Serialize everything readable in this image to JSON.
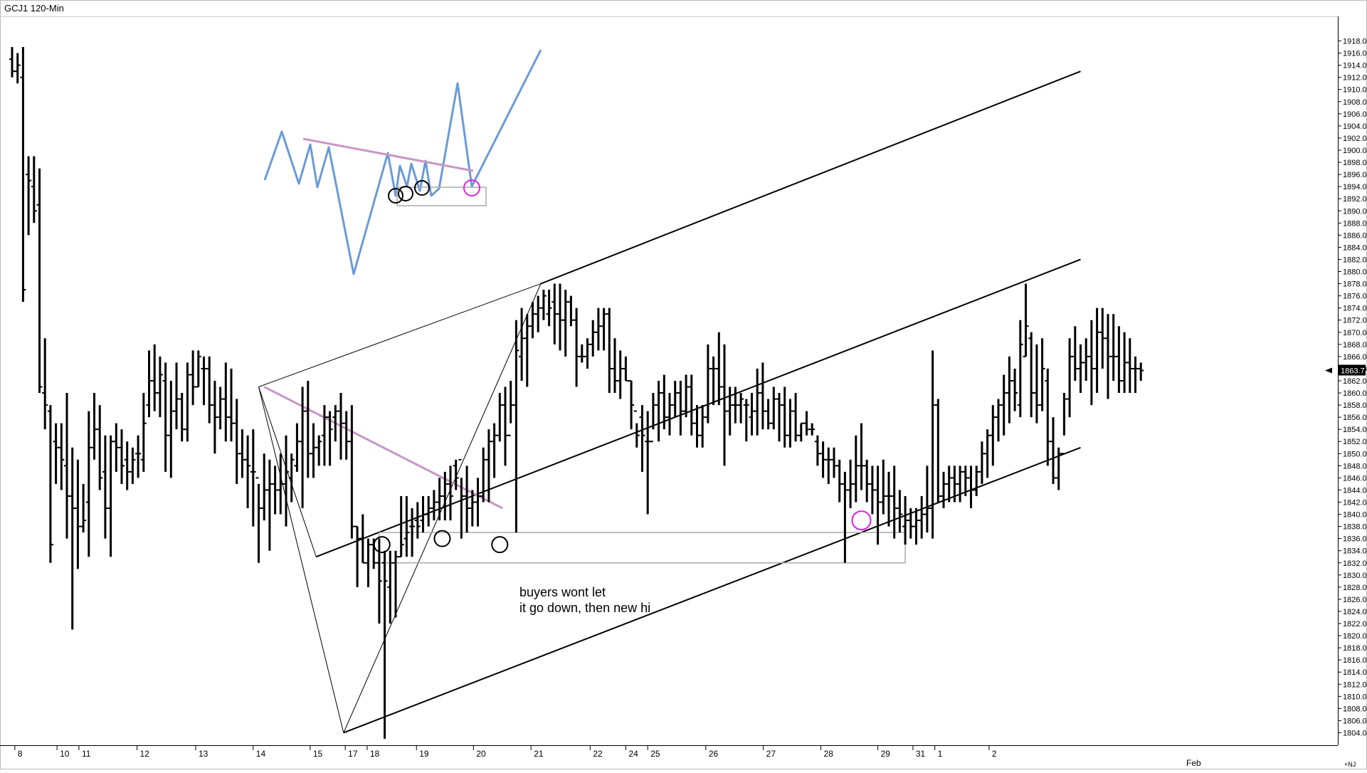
{
  "chart_data": {
    "type": "ohlc",
    "title": "GCJ1 120-Min",
    "last_price": "1863.7",
    "y_axis": {
      "ylim": [
        1803,
        1919
      ],
      "ticks": [
        "1918.0",
        "1916.0",
        "1914.0",
        "1912.0",
        "1910.0",
        "1908.0",
        "1906.0",
        "1904.0",
        "1902.0",
        "1900.0",
        "1898.0",
        "1896.0",
        "1894.0",
        "1892.0",
        "1890.0",
        "1888.0",
        "1886.0",
        "1884.0",
        "1882.0",
        "1880.0",
        "1878.0",
        "1876.0",
        "1874.0",
        "1872.0",
        "1870.0",
        "1868.0",
        "1866.0",
        "1864.0",
        "1862.0",
        "1860.0",
        "1858.0",
        "1856.0",
        "1854.0",
        "1852.0",
        "1850.0",
        "1848.0",
        "1846.0",
        "1844.0",
        "1842.0",
        "1840.0",
        "1838.0",
        "1836.0",
        "1834.0",
        "1832.0",
        "1830.0",
        "1828.0",
        "1826.0",
        "1824.0",
        "1822.0",
        "1820.0",
        "1818.0",
        "1816.0",
        "1814.0",
        "1812.0",
        "1810.0",
        "1808.0",
        "1806.0",
        "1804.0"
      ]
    },
    "x_axis": {
      "labels": [
        {
          "slot": 0.5,
          "text": "8"
        },
        {
          "slot": 8.2,
          "text": "10"
        },
        {
          "slot": 12.2,
          "text": "11"
        },
        {
          "slot": 22.8,
          "text": "12"
        },
        {
          "slot": 33.5,
          "text": "13"
        },
        {
          "slot": 44,
          "text": "14"
        },
        {
          "slot": 54.4,
          "text": "15"
        },
        {
          "slot": 60.8,
          "text": "17"
        },
        {
          "slot": 64.8,
          "text": "18"
        },
        {
          "slot": 73.8,
          "text": "19"
        },
        {
          "slot": 84.2,
          "text": "20"
        },
        {
          "slot": 94.7,
          "text": "21"
        },
        {
          "slot": 105.5,
          "text": "22"
        },
        {
          "slot": 112,
          "text": "24"
        },
        {
          "slot": 116,
          "text": "25"
        },
        {
          "slot": 126.6,
          "text": "26"
        },
        {
          "slot": 137.1,
          "text": "27"
        },
        {
          "slot": 147.6,
          "text": "28"
        },
        {
          "slot": 158,
          "text": "29"
        },
        {
          "slot": 164.4,
          "text": "31"
        },
        {
          "slot": 168.4,
          "text": "1"
        },
        {
          "slot": 178.3,
          "text": "2"
        }
      ],
      "month_label": {
        "slot": 169.5,
        "text": "Feb"
      },
      "corner_label": "+NJ"
    },
    "bars": [
      [
        1915,
        1917,
        1912,
        1913
      ],
      [
        1913,
        1916,
        1911,
        1914
      ],
      [
        1912,
        1917,
        1875,
        1877
      ],
      [
        1896,
        1899,
        1886,
        1895
      ],
      [
        1894,
        1899,
        1888,
        1890
      ],
      [
        1891,
        1897,
        1860,
        1861
      ],
      [
        1860,
        1869,
        1854,
        1858
      ],
      [
        1857,
        1858,
        1832,
        1835
      ],
      [
        1852,
        1855,
        1845,
        1851
      ],
      [
        1851,
        1855,
        1844,
        1849
      ],
      [
        1848,
        1860,
        1836,
        1843
      ],
      [
        1843,
        1851,
        1821,
        1841
      ],
      [
        1841,
        1849,
        1831,
        1838
      ],
      [
        1838,
        1845,
        1837,
        1839
      ],
      [
        1842,
        1857,
        1833,
        1851
      ],
      [
        1851,
        1860,
        1849,
        1854
      ],
      [
        1854,
        1858,
        1844,
        1846
      ],
      [
        1847,
        1853,
        1836,
        1841
      ],
      [
        1841,
        1853,
        1833,
        1852
      ],
      [
        1852,
        1855,
        1847,
        1851
      ],
      [
        1851,
        1854,
        1845,
        1848
      ],
      [
        1849,
        1852,
        1844,
        1847
      ],
      [
        1847,
        1851,
        1845,
        1849
      ],
      [
        1850,
        1853,
        1846,
        1850
      ],
      [
        1849,
        1860,
        1847,
        1855
      ],
      [
        1858,
        1867,
        1856,
        1862
      ],
      [
        1862,
        1868,
        1857,
        1860
      ],
      [
        1860,
        1866,
        1856,
        1863
      ],
      [
        1862,
        1865,
        1847,
        1853
      ],
      [
        1853,
        1862,
        1846,
        1857
      ],
      [
        1857,
        1865,
        1854,
        1859
      ],
      [
        1859,
        1860,
        1852,
        1854
      ],
      [
        1854,
        1865,
        1852,
        1863
      ],
      [
        1863,
        1867,
        1858,
        1861
      ],
      [
        1861,
        1867,
        1861,
        1866
      ],
      [
        1864,
        1866,
        1858,
        1864
      ],
      [
        1864,
        1866,
        1855,
        1858
      ],
      [
        1858,
        1862,
        1850,
        1856
      ],
      [
        1856,
        1861,
        1854,
        1859
      ],
      [
        1859,
        1865,
        1852,
        1856
      ],
      [
        1856,
        1864,
        1852,
        1855
      ],
      [
        1855,
        1859,
        1845,
        1850
      ],
      [
        1850,
        1854,
        1846,
        1849
      ],
      [
        1849,
        1853,
        1841,
        1848
      ],
      [
        1847,
        1854,
        1838,
        1847
      ],
      [
        1846,
        1845,
        1832,
        1841
      ],
      [
        1841,
        1850,
        1839,
        1844
      ],
      [
        1844,
        1849,
        1834,
        1845
      ],
      [
        1845,
        1848,
        1840,
        1844
      ],
      [
        1844,
        1850,
        1840,
        1845
      ],
      [
        1845,
        1853,
        1838,
        1847
      ],
      [
        1846,
        1850,
        1842,
        1849
      ],
      [
        1848,
        1855,
        1847,
        1852
      ],
      [
        1852,
        1861,
        1841,
        1857
      ],
      [
        1857,
        1862,
        1846,
        1850
      ],
      [
        1850,
        1855,
        1846,
        1851
      ],
      [
        1851,
        1853,
        1848,
        1852
      ],
      [
        1853,
        1858,
        1848,
        1856
      ],
      [
        1856,
        1857,
        1848,
        1854
      ],
      [
        1856,
        1858,
        1852,
        1857
      ],
      [
        1857,
        1860,
        1849,
        1855
      ],
      [
        1855,
        1857,
        1849,
        1852
      ],
      [
        1852,
        1858,
        1836,
        1838
      ],
      [
        1838,
        1838,
        1828,
        1836
      ],
      [
        1836,
        1840,
        1832,
        1832
      ],
      [
        1832,
        1836,
        1828,
        1835
      ],
      [
        1835,
        1836,
        1831,
        1832
      ],
      [
        1832,
        1836,
        1822,
        1829
      ],
      [
        1832,
        1834,
        1803,
        1829
      ],
      [
        1828,
        1834,
        1822,
        1832
      ],
      [
        1832,
        1834,
        1823,
        1833
      ],
      [
        1833,
        1843,
        1833,
        1835
      ],
      [
        1836,
        1843,
        1833,
        1837
      ],
      [
        1838,
        1841,
        1833,
        1838
      ],
      [
        1839,
        1842,
        1836,
        1838
      ],
      [
        1839,
        1843,
        1837,
        1840
      ],
      [
        1840,
        1843,
        1838,
        1841
      ],
      [
        1841,
        1844,
        1839,
        1842
      ],
      [
        1842,
        1846,
        1839,
        1843
      ],
      [
        1843,
        1847,
        1839,
        1845
      ],
      [
        1845,
        1848,
        1839,
        1843
      ],
      [
        1848,
        1849,
        1844,
        1846
      ],
      [
        1849,
        1846,
        1836,
        1843
      ],
      [
        1843,
        1848,
        1837,
        1841
      ],
      [
        1841,
        1844,
        1838,
        1842
      ],
      [
        1842,
        1846,
        1838,
        1843
      ],
      [
        1843,
        1851,
        1842,
        1849
      ],
      [
        1849,
        1854,
        1842,
        1852
      ],
      [
        1852,
        1855,
        1846,
        1853
      ],
      [
        1853,
        1860,
        1852,
        1858
      ],
      [
        1858,
        1861,
        1848,
        1853
      ],
      [
        1853,
        1862,
        1855,
        1858
      ],
      [
        1858,
        1872,
        1837,
        1867
      ],
      [
        1866,
        1874,
        1862,
        1869
      ],
      [
        1869,
        1873,
        1861,
        1871
      ],
      [
        1871,
        1875,
        1869,
        1873
      ],
      [
        1873,
        1876,
        1870,
        1874
      ],
      [
        1874,
        1877,
        1872,
        1876
      ],
      [
        1873,
        1877,
        1871,
        1874
      ],
      [
        1875,
        1878,
        1868,
        1873
      ],
      [
        1873,
        1878,
        1867,
        1872
      ],
      [
        1872,
        1877,
        1866,
        1875
      ],
      [
        1875,
        1876,
        1871,
        1872
      ],
      [
        1872,
        1874,
        1861,
        1866
      ],
      [
        1866,
        1868,
        1865,
        1866
      ],
      [
        1866,
        1869,
        1864,
        1868
      ],
      [
        1868,
        1872,
        1866,
        1870
      ],
      [
        1870,
        1874,
        1867,
        1871
      ],
      [
        1871,
        1874,
        1867,
        1873
      ],
      [
        1873,
        1874,
        1860,
        1864
      ],
      [
        1864,
        1869,
        1860,
        1862
      ],
      [
        1862,
        1867,
        1859,
        1864
      ],
      [
        1864,
        1866,
        1862,
        1862
      ],
      [
        1862,
        1862,
        1854,
        1858
      ],
      [
        1857,
        1855,
        1851,
        1853
      ],
      [
        1856,
        1858,
        1847,
        1853
      ],
      [
        1852,
        1857,
        1840,
        1852
      ],
      [
        1852,
        1860,
        1854,
        1858
      ],
      [
        1858,
        1862,
        1852,
        1860
      ],
      [
        1860,
        1863,
        1854,
        1856
      ],
      [
        1856,
        1860,
        1853,
        1858
      ],
      [
        1858,
        1862,
        1856,
        1860
      ],
      [
        1860,
        1862,
        1853,
        1857
      ],
      [
        1857,
        1863,
        1856,
        1861
      ],
      [
        1861,
        1863,
        1853,
        1855
      ],
      [
        1855,
        1858,
        1851,
        1853
      ],
      [
        1853,
        1858,
        1851,
        1856
      ],
      [
        1856,
        1868,
        1855,
        1864
      ],
      [
        1864,
        1866,
        1858,
        1864
      ],
      [
        1864,
        1870,
        1858,
        1861
      ],
      [
        1861,
        1868,
        1848,
        1857
      ],
      [
        1857,
        1861,
        1853,
        1858
      ],
      [
        1858,
        1861,
        1855,
        1858
      ],
      [
        1858,
        1860,
        1855,
        1859
      ],
      [
        1858,
        1859,
        1852,
        1858
      ],
      [
        1856,
        1860,
        1853,
        1857
      ],
      [
        1857,
        1864,
        1853,
        1860
      ],
      [
        1860,
        1865,
        1854,
        1857
      ],
      [
        1857,
        1859,
        1854,
        1855
      ],
      [
        1855,
        1861,
        1854,
        1859
      ],
      [
        1859,
        1860,
        1852,
        1858
      ],
      [
        1858,
        1861,
        1851,
        1853
      ],
      [
        1853,
        1859,
        1851,
        1857
      ],
      [
        1857,
        1860,
        1852,
        1853
      ],
      [
        1853,
        1855,
        1852,
        1855
      ],
      [
        1855,
        1857,
        1853,
        1854
      ],
      [
        1854,
        1855,
        1853,
        1854
      ],
      [
        1852,
        1853,
        1848,
        1850
      ],
      [
        1850,
        1852,
        1846,
        1849
      ],
      [
        1849,
        1851,
        1845,
        1849
      ],
      [
        1849,
        1851,
        1846,
        1848
      ],
      [
        1848,
        1849,
        1842,
        1845
      ],
      [
        1845,
        1847,
        1832,
        1844
      ],
      [
        1844,
        1849,
        1841,
        1845
      ],
      [
        1845,
        1853,
        1842,
        1848
      ],
      [
        1848,
        1855,
        1844,
        1848
      ],
      [
        1848,
        1849,
        1842,
        1845
      ],
      [
        1845,
        1848,
        1840,
        1844
      ],
      [
        1844,
        1848,
        1835,
        1842
      ],
      [
        1842,
        1849,
        1840,
        1843
      ],
      [
        1843,
        1847,
        1838,
        1843
      ],
      [
        1843,
        1848,
        1836,
        1841
      ],
      [
        1841,
        1844,
        1837,
        1840
      ],
      [
        1838,
        1843,
        1835,
        1839
      ],
      [
        1839,
        1841,
        1836,
        1838
      ],
      [
        1838,
        1841,
        1835,
        1839
      ],
      [
        1839,
        1843,
        1836,
        1840
      ],
      [
        1840,
        1848,
        1837,
        1841
      ],
      [
        1841,
        1867,
        1836,
        1858
      ],
      [
        1858,
        1859,
        1842,
        1843
      ],
      [
        1843,
        1847,
        1841,
        1845
      ],
      [
        1845,
        1848,
        1842,
        1846
      ],
      [
        1846,
        1848,
        1842,
        1845
      ],
      [
        1845,
        1848,
        1842,
        1847
      ],
      [
        1847,
        1848,
        1843,
        1846
      ],
      [
        1846,
        1848,
        1841,
        1844
      ],
      [
        1844,
        1848,
        1843,
        1847
      ],
      [
        1847,
        1852,
        1845,
        1850
      ],
      [
        1850,
        1854,
        1846,
        1853
      ],
      [
        1853,
        1858,
        1848,
        1856
      ],
      [
        1856,
        1859,
        1852,
        1858
      ],
      [
        1858,
        1863,
        1853,
        1860
      ],
      [
        1860,
        1866,
        1855,
        1862
      ],
      [
        1862,
        1864,
        1857,
        1860
      ],
      [
        1858,
        1872,
        1856,
        1868
      ],
      [
        1866,
        1878,
        1866,
        1871
      ],
      [
        1869,
        1870,
        1856,
        1860
      ],
      [
        1860,
        1868,
        1855,
        1858
      ],
      [
        1858,
        1869,
        1857,
        1864
      ],
      [
        1862,
        1864,
        1848,
        1852
      ],
      [
        1852,
        1856,
        1845,
        1846
      ],
      [
        1846,
        1851,
        1844,
        1850
      ],
      [
        1850,
        1860,
        1853,
        1859
      ],
      [
        1859,
        1869,
        1856,
        1866
      ],
      [
        1866,
        1871,
        1862,
        1864
      ],
      [
        1864,
        1868,
        1860,
        1865
      ],
      [
        1865,
        1869,
        1862,
        1866
      ],
      [
        1866,
        1872,
        1858,
        1864
      ],
      [
        1864,
        1874,
        1860,
        1870
      ],
      [
        1870,
        1874,
        1864,
        1869
      ],
      [
        1869,
        1873,
        1859,
        1866
      ],
      [
        1866,
        1873,
        1862,
        1866
      ],
      [
        1866,
        1871,
        1860,
        1862
      ],
      [
        1862,
        1870,
        1860,
        1865
      ],
      [
        1865,
        1869,
        1860,
        1864
      ],
      [
        1864,
        1866,
        1860,
        1864
      ],
      [
        1864,
        1865,
        1862,
        1863.7
      ]
    ],
    "annotations": [
      {
        "type": "text",
        "lines": [
          "buyers wont let",
          "it go down, then new hi"
        ]
      }
    ]
  }
}
